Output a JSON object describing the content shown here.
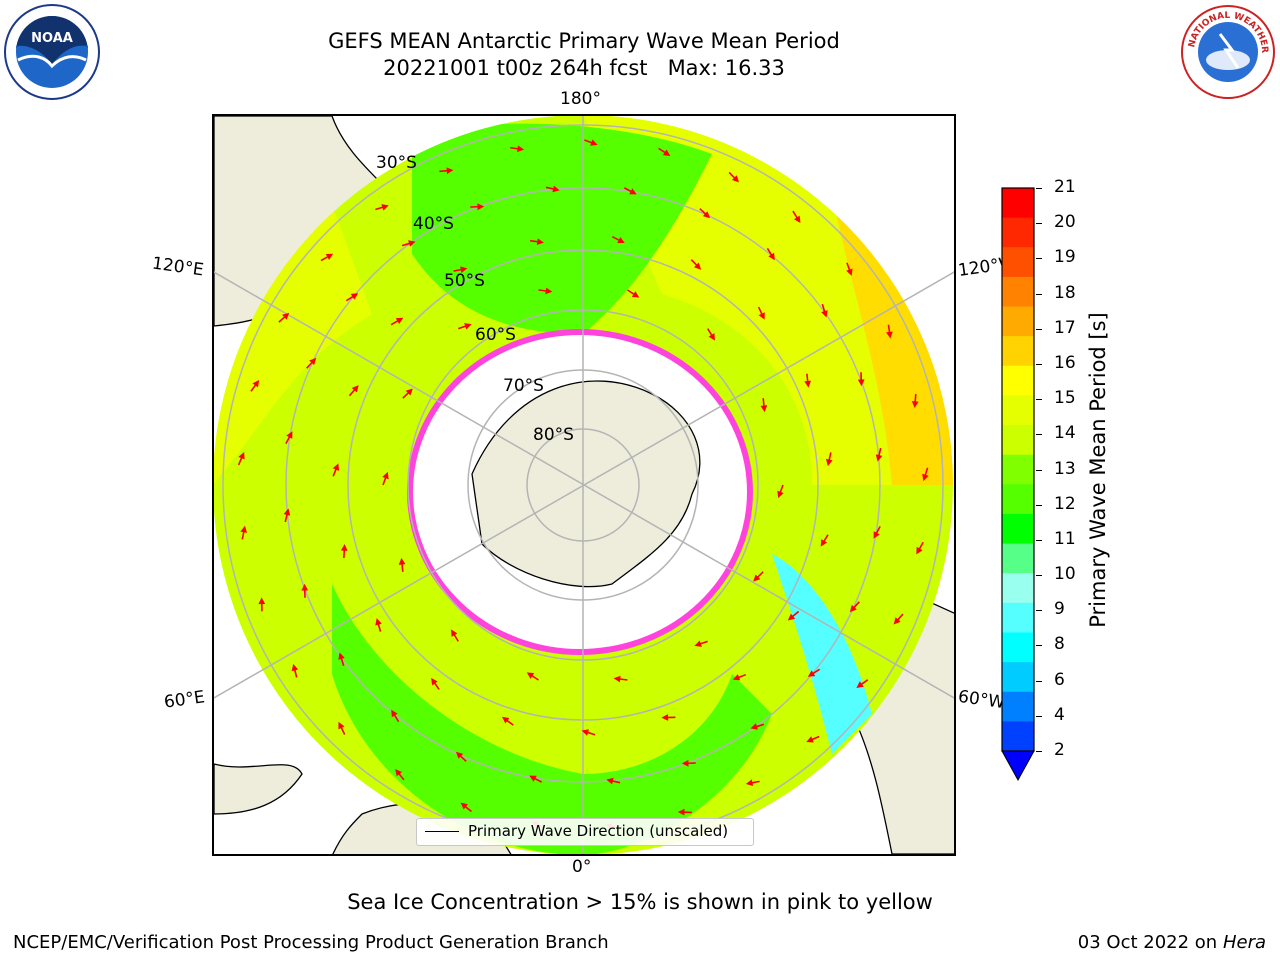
{
  "header": {
    "title_line1": "GEFS MEAN Antarctic Primary Wave Mean Period",
    "title_line2": "20221001 t00z 264h fcst   Max: 16.33"
  },
  "map": {
    "longitude_labels": {
      "top": "180°",
      "bottom": "0°",
      "upper_left": "120°E",
      "upper_right": "120°W",
      "lower_left": "60°E",
      "lower_right": "60°W"
    },
    "latitude_labels": [
      "30°S",
      "40°S",
      "50°S",
      "60°S",
      "70°S",
      "80°S"
    ],
    "legend_text": "Primary Wave Direction (unscaled)",
    "colors": {
      "land": "#eeeddc",
      "ice_free_ocean_low": "#55ff00",
      "ocean_mid": "#ccff00",
      "ocean_high": "#ffcc00",
      "sea_ice_edge": "#ff44dd",
      "arrow": "#ff0000",
      "grid": "#b4b4b4"
    }
  },
  "colorbar": {
    "label": "Primary Wave Mean Period [s]",
    "ticks": [
      "21",
      "20",
      "19",
      "18",
      "17",
      "16",
      "15",
      "14",
      "13",
      "12",
      "11",
      "10",
      "9",
      "8",
      "6",
      "4",
      "2"
    ],
    "colors_top_to_bottom": [
      "#ff0000",
      "#ff2800",
      "#ff5000",
      "#ff8200",
      "#ffaa00",
      "#ffd200",
      "#ffff00",
      "#e6ff00",
      "#ccff00",
      "#80ff00",
      "#55ff00",
      "#00ff00",
      "#55ff88",
      "#99ffee",
      "#55ffff",
      "#00ffff",
      "#00ccff",
      "#0080ff",
      "#0040ff"
    ],
    "extend_color": "#0000ff"
  },
  "notes": {
    "sea_ice": "Sea Ice Concentration > 15% is shown in pink to yellow"
  },
  "footer": {
    "left": "NCEP/EMC/Verification Post Processing Product Generation Branch",
    "right_date": "03 Oct 2022 on",
    "right_machine": "Hera"
  },
  "logos": {
    "noaa": "NOAA",
    "nws": "NATIONAL WEATHER SERVICE"
  }
}
